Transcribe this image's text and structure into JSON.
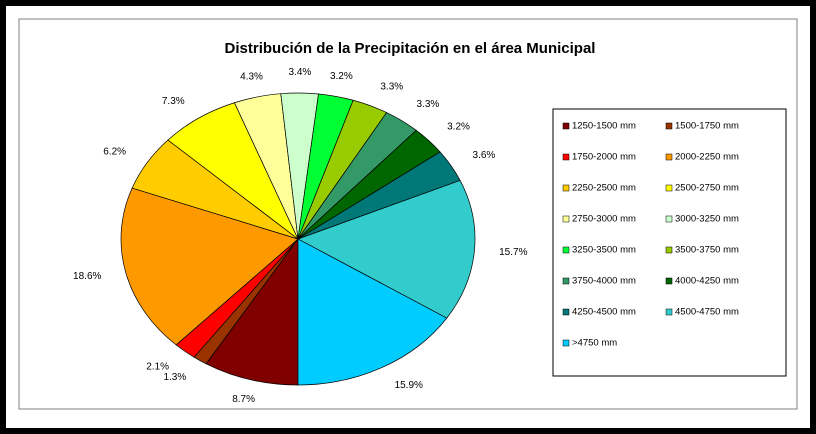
{
  "chart_data": {
    "type": "pie",
    "title": "Distribución de la Precipitación en el área Municipal",
    "categories": [
      "1250-1500 mm",
      "1500-1750 mm",
      "1750-2000 mm",
      "2000-2250 mm",
      "2250-2500 mm",
      "2500-2750 mm",
      "2750-3000 mm",
      "3000-3250 mm",
      "3250-3500 mm",
      "3500-3750 mm",
      "3750-4000 mm",
      "4000-4250 mm",
      "4250-4500 mm",
      "4500-4750 mm",
      ">4750 mm"
    ],
    "values": [
      8.7,
      1.3,
      2.1,
      18.6,
      6.2,
      7.3,
      4.3,
      3.4,
      3.2,
      3.3,
      3.3,
      3.2,
      3.6,
      15.7,
      15.9
    ],
    "value_labels": [
      "8.7%",
      "1.3%",
      "2.1%",
      "18.6%",
      "6.2%",
      "7.3%",
      "4.3%",
      "3.4%",
      "3.2%",
      "3.3%",
      "3.3%",
      "3.2%",
      "3.6%",
      "15.7%",
      "15.9%"
    ],
    "colors": [
      "#800000",
      "#993300",
      "#ff0000",
      "#ff9900",
      "#ffcc00",
      "#ffff00",
      "#ffff99",
      "#ccffcc",
      "#00ff33",
      "#99cc00",
      "#339966",
      "#006600",
      "#007878",
      "#33cccc",
      "#00ccff"
    ],
    "legend": "right"
  }
}
